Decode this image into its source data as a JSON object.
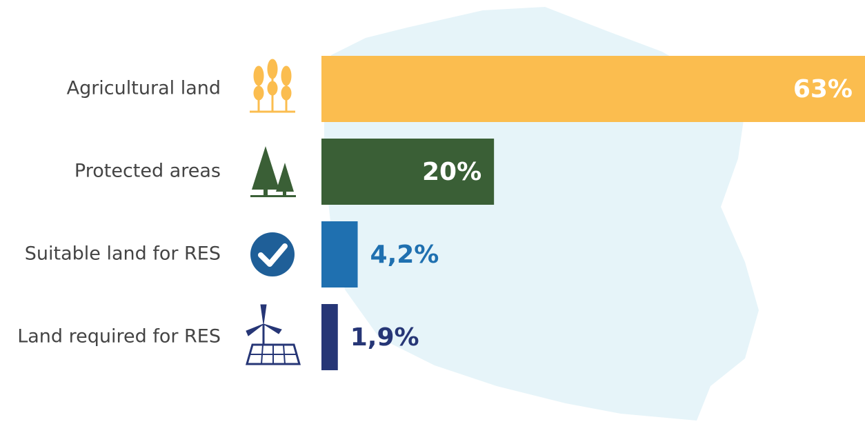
{
  "chart_data": {
    "type": "bar",
    "orientation": "horizontal",
    "categories": [
      "Agricultural land",
      "Protected areas",
      "Suitable land for RES",
      "Land required for RES"
    ],
    "values": [
      63,
      20,
      4.2,
      1.9
    ],
    "value_labels": [
      "63%",
      "20%",
      "4,2%",
      "1,9%"
    ],
    "colors": [
      "#fbbd4f",
      "#3a5f36",
      "#1f70b0",
      "#263676"
    ]
  }
}
